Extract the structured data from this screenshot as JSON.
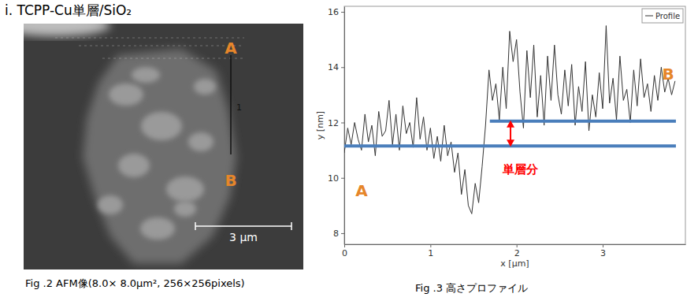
{
  "heading": "i.  TCPP-Cu単層/SiO₂",
  "afm_image": {
    "point_labels": [
      "A",
      "B"
    ],
    "line_label": "1",
    "scale_bar": "3 μm",
    "caption": "Fig .2  AFM像(8.0× 8.0μm², 256×256pixels)"
  },
  "chart_data": {
    "type": "line",
    "caption": "Fig .3  高さプロファイル",
    "x_label": "x [μm]",
    "y_label": "y [nm]",
    "x": [
      0,
      0.04,
      0.08,
      0.12,
      0.16,
      0.2,
      0.24,
      0.28,
      0.32,
      0.36,
      0.4,
      0.44,
      0.48,
      0.52,
      0.56,
      0.6,
      0.64,
      0.68,
      0.72,
      0.76,
      0.8,
      0.84,
      0.88,
      0.92,
      0.96,
      1.0,
      1.04,
      1.08,
      1.12,
      1.16,
      1.2,
      1.24,
      1.28,
      1.32,
      1.36,
      1.4,
      1.44,
      1.48,
      1.52,
      1.56,
      1.6,
      1.64,
      1.68,
      1.72,
      1.76,
      1.8,
      1.84,
      1.88,
      1.92,
      1.96,
      2.0,
      2.04,
      2.08,
      2.12,
      2.16,
      2.2,
      2.24,
      2.28,
      2.32,
      2.36,
      2.4,
      2.44,
      2.48,
      2.52,
      2.56,
      2.6,
      2.64,
      2.68,
      2.72,
      2.76,
      2.8,
      2.84,
      2.88,
      2.92,
      2.96,
      3.0,
      3.04,
      3.08,
      3.12,
      3.16,
      3.2,
      3.24,
      3.28,
      3.32,
      3.36,
      3.4,
      3.44,
      3.48,
      3.52,
      3.56,
      3.6,
      3.64,
      3.68,
      3.72,
      3.76,
      3.8,
      3.84
    ],
    "series": [
      {
        "name": "Profile",
        "color": "#333333",
        "values": [
          10.9,
          11.8,
          11.2,
          12.0,
          11.4,
          11.0,
          12.3,
          11.3,
          11.9,
          10.8,
          12.4,
          11.5,
          11.7,
          12.8,
          11.2,
          12.3,
          11.0,
          12.6,
          11.6,
          12.0,
          11.1,
          12.9,
          11.4,
          12.2,
          11.0,
          11.8,
          10.7,
          11.5,
          10.6,
          11.9,
          10.8,
          11.3,
          10.2,
          10.9,
          9.4,
          10.3,
          9.0,
          8.7,
          9.8,
          9.1,
          10.4,
          11.9,
          13.9,
          12.8,
          13.4,
          12.1,
          14.0,
          12.5,
          15.3,
          14.2,
          15.0,
          13.1,
          11.8,
          14.6,
          12.9,
          14.8,
          12.2,
          13.7,
          11.9,
          14.4,
          12.8,
          14.8,
          13.0,
          12.3,
          13.9,
          12.6,
          14.1,
          11.9,
          13.3,
          12.4,
          14.2,
          11.7,
          13.0,
          12.2,
          13.8,
          12.5,
          15.5,
          12.7,
          13.6,
          12.1,
          14.4,
          12.8,
          13.2,
          12.0,
          13.9,
          12.6,
          14.3,
          12.9,
          13.4,
          12.4,
          13.7,
          12.8,
          14.0,
          13.1,
          13.6,
          13.0,
          13.5
        ]
      }
    ],
    "xlim": [
      0,
      3.96
    ],
    "ylim": [
      7.6,
      16.2
    ],
    "xticks": [
      0,
      1,
      2,
      3
    ],
    "yticks": [
      8,
      10,
      12,
      14,
      16
    ],
    "grid": false,
    "legend": "upper right",
    "reference_lines": [
      {
        "y": 11.15,
        "x": [
          0,
          3.85
        ],
        "color": "#4a7ebb"
      },
      {
        "y": 12.05,
        "x": [
          1.69,
          3.85
        ],
        "color": "#4a7ebb"
      }
    ],
    "arrow": {
      "x": 1.93,
      "y": [
        11.15,
        12.05
      ],
      "color": "#ff0000"
    },
    "annotations": [
      {
        "text": "A",
        "x": 0.2,
        "y": 9.5,
        "color": "#e6862a"
      },
      {
        "text": "B",
        "x": 3.76,
        "y": 13.7,
        "color": "#e6862a"
      },
      {
        "text": "単層分",
        "x": 2.04,
        "y": 10.3,
        "color": "#ff0000"
      }
    ]
  }
}
